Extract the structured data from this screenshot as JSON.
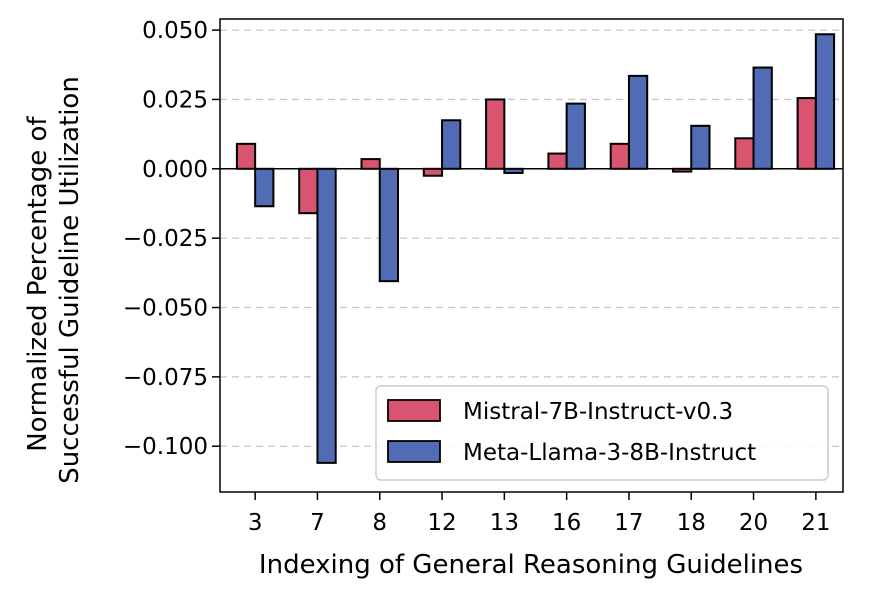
{
  "chart_data": {
    "type": "bar",
    "title": "",
    "xlabel": "Indexing of General Reasoning Guidelines",
    "ylabel_lines": [
      "Normalized Percentage of",
      "Successful Guideline Utilization"
    ],
    "categories": [
      "3",
      "7",
      "8",
      "12",
      "13",
      "16",
      "17",
      "18",
      "20",
      "21"
    ],
    "series": [
      {
        "name": "Mistral-7B-Instruct-v0.3",
        "color": "#d9546e",
        "values": [
          0.009,
          -0.016,
          0.0035,
          -0.0025,
          0.025,
          0.0055,
          0.009,
          -0.001,
          0.011,
          0.0255
        ]
      },
      {
        "name": "Meta-Llama-3-8B-Instruct",
        "color": "#516cb5",
        "values": [
          -0.0135,
          -0.106,
          -0.0405,
          0.0175,
          -0.0015,
          0.0235,
          0.0335,
          0.0155,
          0.0365,
          0.0485
        ]
      }
    ],
    "ylim": [
      -0.1165,
      0.054
    ],
    "yticks": [
      0.05,
      0.025,
      0.0,
      -0.025,
      -0.05,
      -0.075,
      -0.1
    ],
    "ytick_labels": [
      "0.050",
      "0.025",
      "0.000",
      "−0.025",
      "−0.050",
      "−0.075",
      "−0.100"
    ],
    "grid": "horizontal dashed",
    "legend_position": "bottom-right"
  }
}
